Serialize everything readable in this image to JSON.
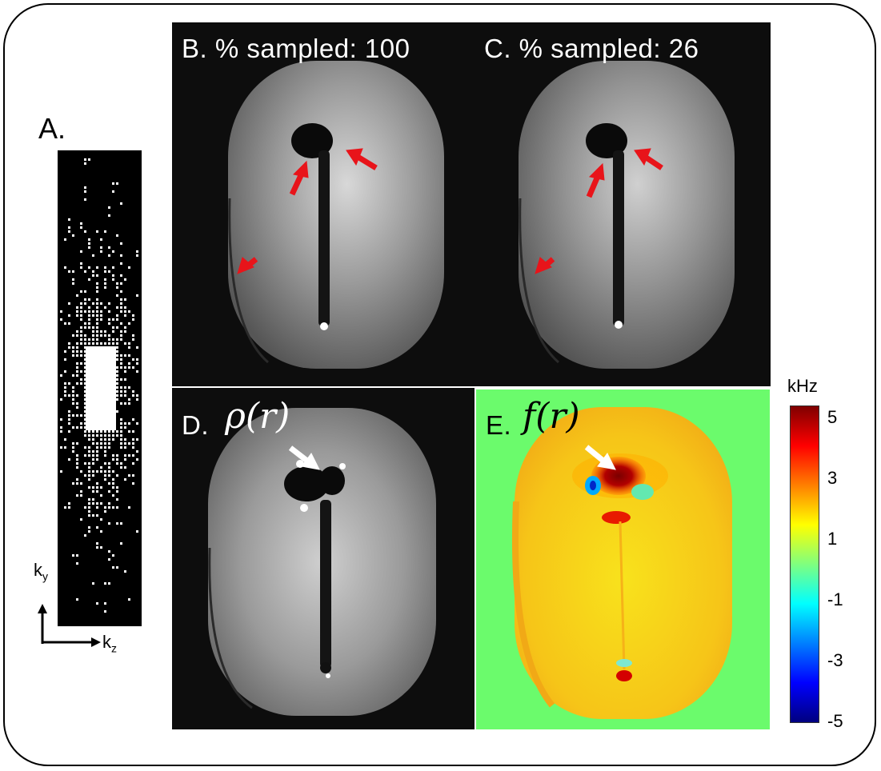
{
  "panels": {
    "a": {
      "letter": "A."
    },
    "b": {
      "title": "B. % sampled: 100"
    },
    "c": {
      "title": "C. % sampled: 26"
    },
    "d": {
      "letter": "D.",
      "symbol": "ρ(r)"
    },
    "e": {
      "letter": "E.",
      "symbol": "f(r)"
    }
  },
  "axes": {
    "y_main": "k",
    "y_sub": "y",
    "x_main": "k",
    "x_sub": "z"
  },
  "colorbar": {
    "unit": "kHz",
    "ticks": [
      "5",
      "3",
      "1",
      "-1",
      "-3",
      "-5"
    ],
    "range": [
      -5,
      5
    ]
  },
  "colors": {
    "arrow_red": "#e8141a",
    "arrow_white": "#ffffff",
    "field_map_background": "#6bfb6c",
    "colormap": "jet"
  }
}
